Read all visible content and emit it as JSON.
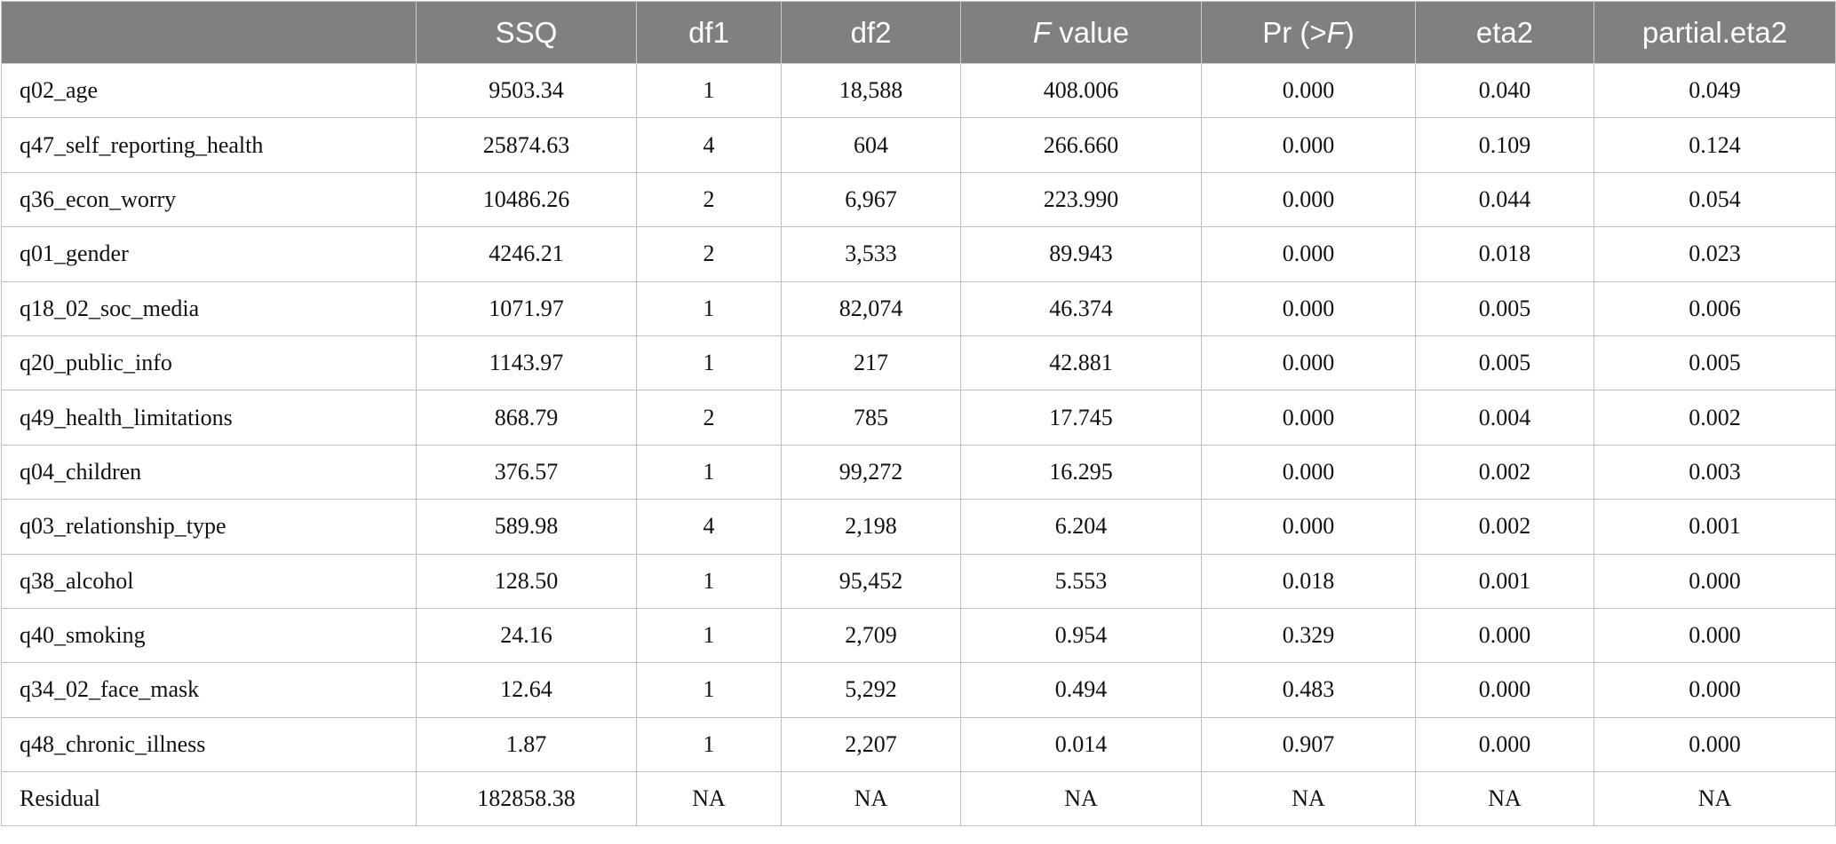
{
  "table": {
    "header": {
      "corner": "",
      "ssq": "SSQ",
      "df1": "df1",
      "df2": "df2",
      "f_value_italic": "F",
      "f_value_rest": " value",
      "pr_prefix": "Pr (>",
      "pr_italic": "F",
      "pr_suffix": ")",
      "eta2": "eta2",
      "partial_eta2": "partial.eta2"
    },
    "rows": [
      {
        "term": "q02_age",
        "ssq": "9503.34",
        "df1": "1",
        "df2": "18,588",
        "f": "408.006",
        "pr": "0.000",
        "eta2": "0.040",
        "peta2": "0.049"
      },
      {
        "term": "q47_self_reporting_health",
        "ssq": "25874.63",
        "df1": "4",
        "df2": "604",
        "f": "266.660",
        "pr": "0.000",
        "eta2": "0.109",
        "peta2": "0.124"
      },
      {
        "term": "q36_econ_worry",
        "ssq": "10486.26",
        "df1": "2",
        "df2": "6,967",
        "f": "223.990",
        "pr": "0.000",
        "eta2": "0.044",
        "peta2": "0.054"
      },
      {
        "term": "q01_gender",
        "ssq": "4246.21",
        "df1": "2",
        "df2": "3,533",
        "f": "89.943",
        "pr": "0.000",
        "eta2": "0.018",
        "peta2": "0.023"
      },
      {
        "term": "q18_02_soc_media",
        "ssq": "1071.97",
        "df1": "1",
        "df2": "82,074",
        "f": "46.374",
        "pr": "0.000",
        "eta2": "0.005",
        "peta2": "0.006"
      },
      {
        "term": "q20_public_info",
        "ssq": "1143.97",
        "df1": "1",
        "df2": "217",
        "f": "42.881",
        "pr": "0.000",
        "eta2": "0.005",
        "peta2": "0.005"
      },
      {
        "term": "q49_health_limitations",
        "ssq": "868.79",
        "df1": "2",
        "df2": "785",
        "f": "17.745",
        "pr": "0.000",
        "eta2": "0.004",
        "peta2": "0.002"
      },
      {
        "term": "q04_children",
        "ssq": "376.57",
        "df1": "1",
        "df2": "99,272",
        "f": "16.295",
        "pr": "0.000",
        "eta2": "0.002",
        "peta2": "0.003"
      },
      {
        "term": "q03_relationship_type",
        "ssq": "589.98",
        "df1": "4",
        "df2": "2,198",
        "f": "6.204",
        "pr": "0.000",
        "eta2": "0.002",
        "peta2": "0.001"
      },
      {
        "term": "q38_alcohol",
        "ssq": "128.50",
        "df1": "1",
        "df2": "95,452",
        "f": "5.553",
        "pr": "0.018",
        "eta2": "0.001",
        "peta2": "0.000"
      },
      {
        "term": "q40_smoking",
        "ssq": "24.16",
        "df1": "1",
        "df2": "2,709",
        "f": "0.954",
        "pr": "0.329",
        "eta2": "0.000",
        "peta2": "0.000"
      },
      {
        "term": "q34_02_face_mask",
        "ssq": "12.64",
        "df1": "1",
        "df2": "5,292",
        "f": "0.494",
        "pr": "0.483",
        "eta2": "0.000",
        "peta2": "0.000"
      },
      {
        "term": "q48_chronic_illness",
        "ssq": "1.87",
        "df1": "1",
        "df2": "2,207",
        "f": "0.014",
        "pr": "0.907",
        "eta2": "0.000",
        "peta2": "0.000"
      },
      {
        "term": "Residual",
        "ssq": "182858.38",
        "df1": "NA",
        "df2": "NA",
        "f": "NA",
        "pr": "NA",
        "eta2": "NA",
        "peta2": "NA"
      }
    ],
    "colors": {
      "header_bg": "#808080",
      "header_text": "#ffffff",
      "grid": "#bfbfbf"
    }
  }
}
